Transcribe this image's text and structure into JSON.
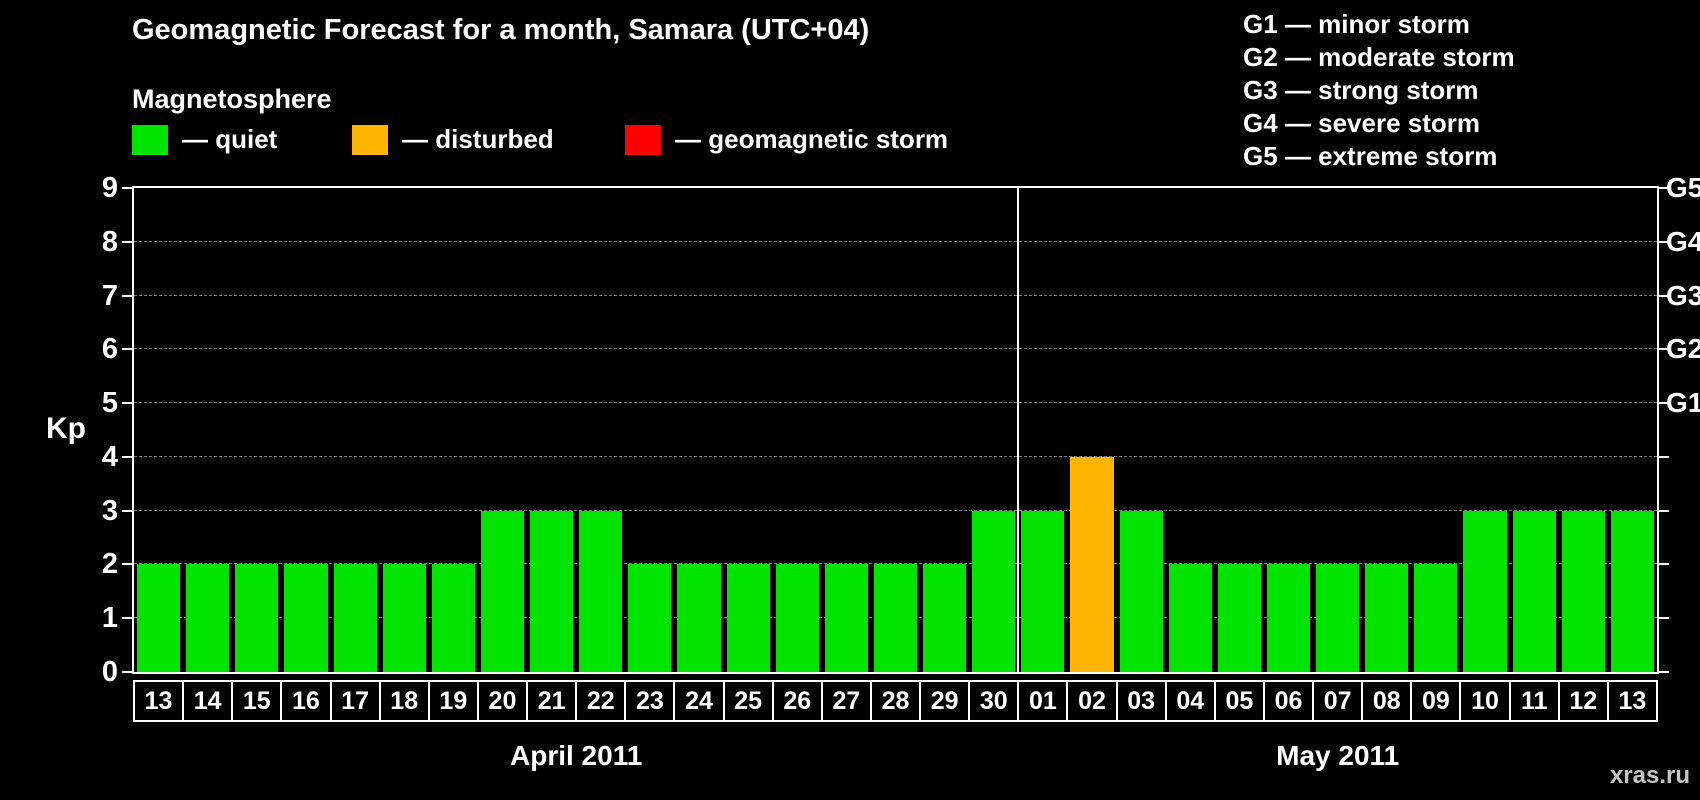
{
  "title": "Geomagnetic Forecast for a month, Samara (UTC+04)",
  "legend": {
    "heading": "Magnetosphere",
    "items": [
      {
        "id": "quiet",
        "label": "— quiet",
        "color": "#00e400"
      },
      {
        "id": "disturbed",
        "label": "— disturbed",
        "color": "#ffb400"
      },
      {
        "id": "storm",
        "label": "— geomagnetic storm",
        "color": "#ff0000"
      }
    ]
  },
  "storm_scale": [
    "G1 — minor storm",
    "G2 — moderate storm",
    "G3 — strong storm",
    "G4 — severe storm",
    "G5 — extreme storm"
  ],
  "watermark": "xras.ru",
  "chart_data": {
    "type": "bar",
    "title": "Geomagnetic Forecast for a month, Samara (UTC+04)",
    "ylabel": "Kp",
    "ylim": [
      0,
      9
    ],
    "yticks": [
      0,
      1,
      2,
      3,
      4,
      5,
      6,
      7,
      8,
      9
    ],
    "grid": "dashed-horizontal",
    "right_axis": [
      {
        "label": "G1",
        "kp": 5
      },
      {
        "label": "G2",
        "kp": 6
      },
      {
        "label": "G3",
        "kp": 7
      },
      {
        "label": "G4",
        "kp": 8
      },
      {
        "label": "G5",
        "kp": 9
      }
    ],
    "months": [
      {
        "label": "April 2011",
        "days": 18
      },
      {
        "label": "May 2011",
        "days": 13
      }
    ],
    "categories": [
      "13",
      "14",
      "15",
      "16",
      "17",
      "18",
      "19",
      "20",
      "21",
      "22",
      "23",
      "24",
      "25",
      "26",
      "27",
      "28",
      "29",
      "30",
      "01",
      "02",
      "03",
      "04",
      "05",
      "06",
      "07",
      "08",
      "09",
      "10",
      "11",
      "12",
      "13"
    ],
    "values": [
      2,
      2,
      2,
      2,
      2,
      2,
      2,
      3,
      3,
      3,
      2,
      2,
      2,
      2,
      2,
      2,
      2,
      3,
      3,
      4,
      3,
      2,
      2,
      2,
      2,
      2,
      2,
      3,
      3,
      3,
      3
    ],
    "states": [
      "quiet",
      "quiet",
      "quiet",
      "quiet",
      "quiet",
      "quiet",
      "quiet",
      "quiet",
      "quiet",
      "quiet",
      "quiet",
      "quiet",
      "quiet",
      "quiet",
      "quiet",
      "quiet",
      "quiet",
      "quiet",
      "quiet",
      "disturbed",
      "quiet",
      "quiet",
      "quiet",
      "quiet",
      "quiet",
      "quiet",
      "quiet",
      "quiet",
      "quiet",
      "quiet",
      "quiet"
    ]
  }
}
